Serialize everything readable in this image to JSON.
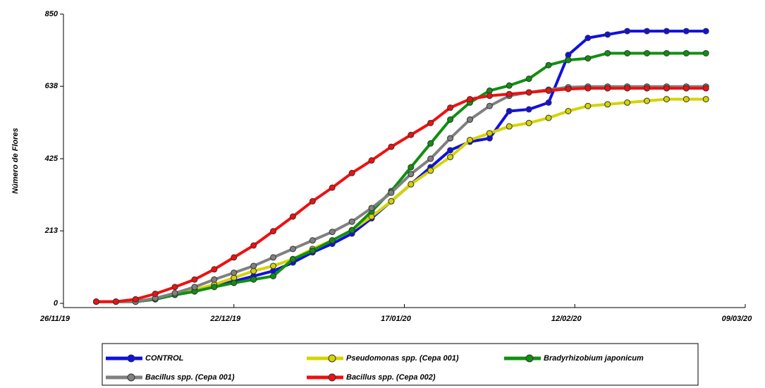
{
  "chart_data": {
    "type": "line",
    "y_label": "Número de Flores",
    "x": [
      "01/12/19",
      "04/12/19",
      "07/12/19",
      "10/12/19",
      "13/12/19",
      "16/12/19",
      "19/12/19",
      "22/12/19",
      "25/12/19",
      "28/12/19",
      "31/12/19",
      "03/01/20",
      "06/01/20",
      "09/01/20",
      "12/01/20",
      "15/01/20",
      "18/01/20",
      "21/01/20",
      "24/01/20",
      "27/01/20",
      "30/01/20",
      "02/02/20",
      "05/02/20",
      "08/02/20",
      "11/02/20",
      "14/02/20",
      "17/02/20",
      "20/02/20",
      "23/02/20",
      "26/02/20",
      "29/02/20",
      "03/03/20"
    ],
    "xlim": [
      "26/11/19",
      "09/03/20"
    ],
    "xticks": [
      "26/11/19",
      "22/12/19",
      "17/01/20",
      "12/02/20",
      "09/03/20"
    ],
    "ylim": [
      0,
      850
    ],
    "yticks": [
      0,
      213,
      425,
      638,
      850
    ],
    "series": [
      {
        "name": "CONTROL",
        "color": "#1010e0",
        "values": [
          5,
          5,
          5,
          12,
          25,
          35,
          50,
          65,
          80,
          95,
          120,
          150,
          175,
          205,
          250,
          300,
          350,
          400,
          450,
          475,
          485,
          565,
          570,
          590,
          730,
          780,
          790,
          800,
          800,
          800,
          800,
          800
        ]
      },
      {
        "name": "Pseudomonas spp. (Cepa 001)",
        "color": "#d4d400",
        "values": [
          5,
          5,
          5,
          15,
          28,
          40,
          55,
          75,
          95,
          110,
          130,
          160,
          185,
          215,
          255,
          300,
          350,
          390,
          430,
          480,
          500,
          520,
          530,
          545,
          565,
          580,
          585,
          590,
          595,
          600,
          600,
          600
        ]
      },
      {
        "name": "Bradyrhizobium japonicum",
        "color": "#109010",
        "values": [
          5,
          5,
          5,
          12,
          25,
          35,
          48,
          60,
          70,
          80,
          130,
          155,
          185,
          215,
          270,
          330,
          400,
          470,
          540,
          590,
          625,
          640,
          660,
          700,
          715,
          720,
          735,
          735,
          735,
          735,
          735,
          735
        ]
      },
      {
        "name": "Bacillus spp. (Cepa 001)",
        "color": "#808080",
        "values": [
          5,
          5,
          5,
          15,
          30,
          48,
          70,
          90,
          110,
          135,
          160,
          185,
          210,
          240,
          280,
          325,
          380,
          425,
          485,
          540,
          580,
          610,
          620,
          628,
          635,
          637,
          637,
          637,
          637,
          637,
          637,
          637
        ]
      },
      {
        "name": "Bacillus spp. (Cepa 002)",
        "color": "#f01010",
        "values": [
          5,
          5,
          12,
          28,
          48,
          70,
          100,
          135,
          170,
          212,
          255,
          300,
          340,
          383,
          420,
          460,
          495,
          530,
          575,
          600,
          610,
          615,
          620,
          625,
          630,
          632,
          632,
          632,
          632,
          632,
          632,
          632
        ]
      }
    ]
  }
}
